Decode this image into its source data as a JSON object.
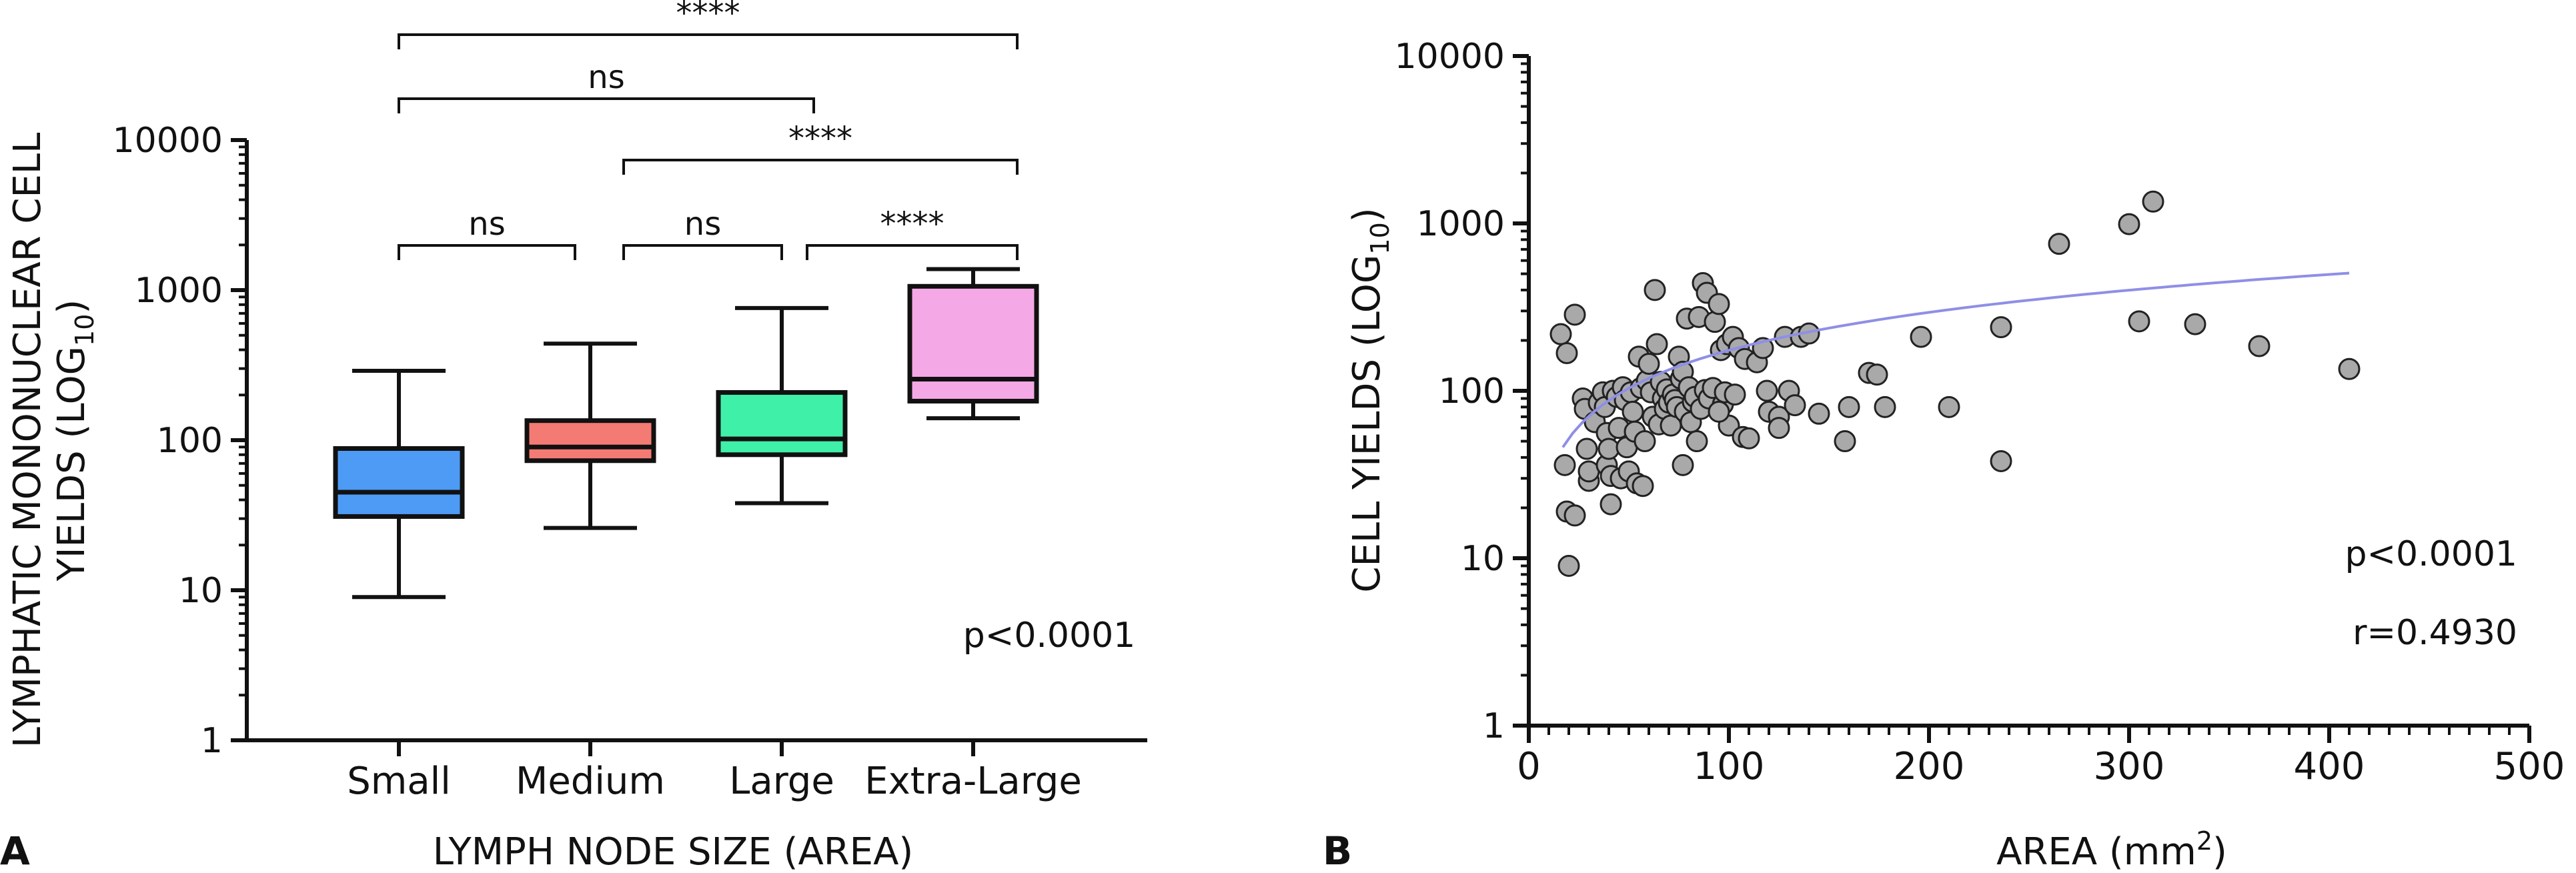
{
  "chart_data": [
    {
      "type": "box",
      "panel_label": "A",
      "title": "",
      "xlabel": "LYMPH NODE SIZE (AREA)",
      "ylabel_line1": "LYMPHATIC MONONUCLEAR CELL",
      "ylabel_line2_prefix": "YIELDS (LOG",
      "ylabel_line2_sub": "10",
      "ylabel_line2_suffix": ")",
      "yscale": "log",
      "ylim": [
        1,
        10000
      ],
      "yticks": [
        1,
        10,
        100,
        1000,
        10000
      ],
      "ytick_labels": [
        "1",
        "10",
        "100",
        "1000",
        "10000"
      ],
      "categories": [
        "Small",
        "Medium",
        "Large",
        "Extra-Large"
      ],
      "boxes": [
        {
          "name": "Small",
          "min": 9,
          "q1": 31,
          "median": 45,
          "q3": 88,
          "max": 290,
          "color": "#4d9bf5"
        },
        {
          "name": "Medium",
          "min": 26,
          "q1": 73,
          "median": 90,
          "q3": 135,
          "max": 440,
          "color": "#f47a74"
        },
        {
          "name": "Large",
          "min": 38,
          "q1": 80,
          "median": 102,
          "q3": 208,
          "max": 760,
          "color": "#3ff0a9"
        },
        {
          "name": "Extra-Large",
          "min": 140,
          "q1": 182,
          "median": 255,
          "q3": 1060,
          "max": 1380,
          "color": "#f4a8e6"
        }
      ],
      "annotation": "p<0.0001",
      "significance": [
        {
          "from": "Small",
          "to": "Extra-Large",
          "label": "****"
        },
        {
          "from": "Small",
          "to": "Large",
          "label": "ns"
        },
        {
          "from": "Medium",
          "to": "Extra-Large",
          "label": "****"
        },
        {
          "from": "Small",
          "to": "Medium",
          "label": "ns"
        },
        {
          "from": "Medium",
          "to": "Large",
          "label": "ns"
        },
        {
          "from": "Large",
          "to": "Extra-Large",
          "label": "****"
        }
      ]
    },
    {
      "type": "scatter",
      "panel_label": "B",
      "title": "",
      "xlabel_prefix": "AREA (mm",
      "xlabel_sup": "2",
      "xlabel_suffix": ")",
      "ylabel_prefix": "CELL YIELDS (LOG",
      "ylabel_sub": "10",
      "ylabel_suffix": ")",
      "xlim": [
        0,
        500
      ],
      "xticks": [
        0,
        100,
        200,
        300,
        400,
        500
      ],
      "xtick_labels": [
        "0",
        "100",
        "200",
        "300",
        "400",
        "500"
      ],
      "yscale": "log",
      "ylim": [
        1,
        10000
      ],
      "yticks": [
        1,
        10,
        100,
        1000,
        10000
      ],
      "ytick_labels": [
        "1",
        "10",
        "100",
        "1000",
        "10000"
      ],
      "annotation_p": "p<0.0001",
      "annotation_r": "r=0.4930",
      "point_color": "#a9a9a9",
      "fit_color": "#8f8fe6",
      "fit": {
        "type": "log-linear",
        "x_start": 17,
        "x_end": 410,
        "y_start": 46,
        "y_end": 505
      },
      "points": [
        [
          16,
          218
        ],
        [
          19,
          168
        ],
        [
          23,
          285
        ],
        [
          18,
          36
        ],
        [
          19,
          19
        ],
        [
          23,
          18
        ],
        [
          20,
          9
        ],
        [
          27,
          90
        ],
        [
          28,
          78
        ],
        [
          29,
          45
        ],
        [
          30,
          29
        ],
        [
          30,
          33
        ],
        [
          33,
          65
        ],
        [
          35,
          85
        ],
        [
          37,
          98
        ],
        [
          38,
          80
        ],
        [
          39,
          56
        ],
        [
          39,
          36
        ],
        [
          40,
          45
        ],
        [
          41,
          21
        ],
        [
          41,
          31
        ],
        [
          42,
          100
        ],
        [
          44,
          92
        ],
        [
          45,
          60
        ],
        [
          46,
          30
        ],
        [
          47,
          105
        ],
        [
          48,
          88
        ],
        [
          49,
          46
        ],
        [
          50,
          33
        ],
        [
          51,
          98
        ],
        [
          52,
          75
        ],
        [
          53,
          57
        ],
        [
          54,
          28
        ],
        [
          55,
          160
        ],
        [
          56,
          104
        ],
        [
          57,
          27
        ],
        [
          58,
          50
        ],
        [
          59,
          115
        ],
        [
          60,
          145
        ],
        [
          61,
          98
        ],
        [
          62,
          70
        ],
        [
          63,
          400
        ],
        [
          64,
          190
        ],
        [
          65,
          63
        ],
        [
          66,
          113
        ],
        [
          67,
          90
        ],
        [
          68,
          78
        ],
        [
          69,
          102
        ],
        [
          70,
          85
        ],
        [
          71,
          62
        ],
        [
          72,
          95
        ],
        [
          73,
          88
        ],
        [
          74,
          80
        ],
        [
          75,
          160
        ],
        [
          76,
          118
        ],
        [
          77,
          130
        ],
        [
          77,
          36
        ],
        [
          78,
          75
        ],
        [
          79,
          270
        ],
        [
          80,
          105
        ],
        [
          81,
          65
        ],
        [
          82,
          86
        ],
        [
          83,
          92
        ],
        [
          84,
          50
        ],
        [
          85,
          276
        ],
        [
          86,
          78
        ],
        [
          87,
          440
        ],
        [
          88,
          101
        ],
        [
          89,
          385
        ],
        [
          90,
          90
        ],
        [
          92,
          104
        ],
        [
          93,
          258
        ],
        [
          95,
          330
        ],
        [
          96,
          175
        ],
        [
          97,
          83
        ],
        [
          98,
          98
        ],
        [
          99,
          190
        ],
        [
          100,
          62
        ],
        [
          102,
          210
        ],
        [
          103,
          95
        ],
        [
          105,
          180
        ],
        [
          107,
          53
        ],
        [
          108,
          155
        ],
        [
          110,
          52
        ],
        [
          114,
          148
        ],
        [
          117,
          180
        ],
        [
          119,
          100
        ],
        [
          120,
          75
        ],
        [
          125,
          70
        ],
        [
          128,
          210
        ],
        [
          130,
          100
        ],
        [
          133,
          82
        ],
        [
          136,
          210
        ],
        [
          140,
          220
        ],
        [
          145,
          73
        ],
        [
          158,
          50
        ],
        [
          170,
          128
        ],
        [
          174,
          125
        ],
        [
          178,
          80
        ],
        [
          196,
          210
        ],
        [
          210,
          80
        ],
        [
          236,
          38
        ],
        [
          236,
          240
        ],
        [
          265,
          755
        ],
        [
          300,
          990
        ],
        [
          312,
          1350
        ],
        [
          305,
          260
        ],
        [
          333,
          250
        ],
        [
          365,
          185
        ],
        [
          410,
          135
        ],
        [
          160,
          80
        ],
        [
          125,
          60
        ],
        [
          95,
          75
        ]
      ]
    }
  ]
}
